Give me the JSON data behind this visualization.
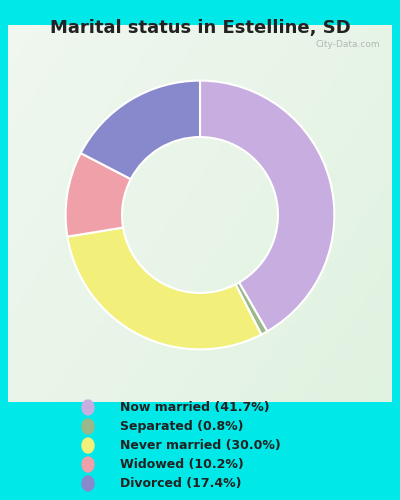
{
  "title": "Marital status in Estelline, SD",
  "slices": [
    41.7,
    0.8,
    30.0,
    10.2,
    17.4
  ],
  "labels": [
    "Now married (41.7%)",
    "Separated (0.8%)",
    "Never married (30.0%)",
    "Widowed (10.2%)",
    "Divorced (17.4%)"
  ],
  "colors": [
    "#c8aee0",
    "#9ab88a",
    "#f2f07a",
    "#f0a0a8",
    "#8888cc"
  ],
  "legend_colors": [
    "#c8aee0",
    "#9ab88a",
    "#f2f07a",
    "#f0a0a8",
    "#8888cc"
  ],
  "bg_color": "#00e8e8",
  "chart_bg_top": "#e8f5ee",
  "chart_bg_bottom": "#d0eedd",
  "title_fontsize": 13,
  "watermark": "City-Data.com",
  "start_angle": 90,
  "donut_width": 0.42
}
